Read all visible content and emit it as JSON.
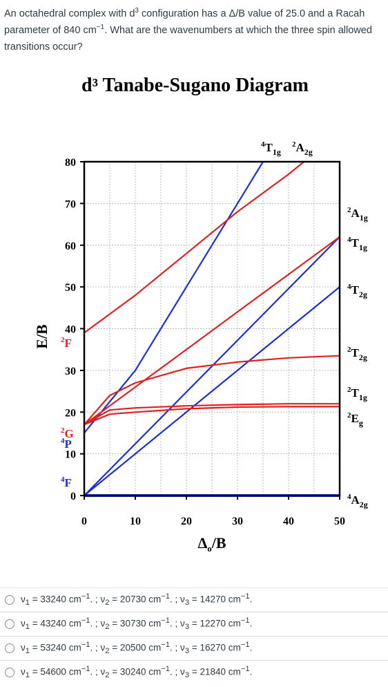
{
  "question": {
    "part1": "An octahedral complex with d",
    "sup1": "3",
    "part2": " configuration has a Δ/B value of 25.0 and a Racah parameter of 840 cm",
    "sup2": "−1",
    "part3": ". What are the wavenumbers at which the three spin allowed transitions occur?"
  },
  "diagram": {
    "title_main": "d³ Tanabe-Sugano Diagram",
    "ylabel": "E/B",
    "xlabel": "Δo/B",
    "top_labels": [
      "⁴T1g",
      "²A2g"
    ],
    "right_labels": [
      "²A1g",
      "⁴T1g",
      "⁴T2g",
      "²T2g",
      "²T1g",
      "²Eg",
      "⁴A2g"
    ],
    "left_labels": [
      "²F",
      "²G",
      "⁴P",
      "⁴F"
    ],
    "colors": {
      "quartet": "#1a2fd6",
      "doublet": "#e02020",
      "grid": "#b8b8b8"
    }
  },
  "chart_data": {
    "type": "line",
    "title": "d³ Tanabe-Sugano Diagram",
    "xlabel": "Δo/B",
    "ylabel": "E/B",
    "xlim": [
      0,
      50
    ],
    "ylim": [
      0,
      80
    ],
    "x_ticks": [
      "0",
      "10",
      "20",
      "30",
      "40",
      "50"
    ],
    "y_ticks": [
      "0",
      "10",
      "20",
      "30",
      "40",
      "50",
      "60",
      "70",
      "80"
    ],
    "grid": true,
    "series": [
      {
        "name": "⁴A2g",
        "color": "#1a2fd6",
        "x": [
          0,
          50
        ],
        "y": [
          0,
          0
        ]
      },
      {
        "name": "⁴T2g",
        "color": "#1a2fd6",
        "x": [
          0,
          50
        ],
        "y": [
          0,
          50
        ]
      },
      {
        "name": "⁴T1g",
        "color": "#1a2fd6",
        "x": [
          0,
          50
        ],
        "y": [
          0,
          62
        ]
      },
      {
        "name": "⁴T1g",
        "color": "#1a2fd6",
        "x": [
          0,
          10,
          20,
          30,
          35
        ],
        "y": [
          15,
          30,
          50,
          70,
          80
        ]
      },
      {
        "name": "²A1g",
        "color": "#e02020",
        "x": [
          0,
          10,
          20,
          30,
          40,
          50
        ],
        "y": [
          17,
          26,
          35,
          44,
          53,
          62
        ]
      },
      {
        "name": "²A2g",
        "color": "#e02020",
        "x": [
          0,
          10,
          20,
          30,
          40,
          43
        ],
        "y": [
          39,
          48,
          58,
          68,
          77,
          80
        ]
      },
      {
        "name": "²T2g",
        "color": "#e02020",
        "x": [
          0,
          5,
          10,
          20,
          30,
          40,
          50
        ],
        "y": [
          17,
          24,
          27,
          30.5,
          32,
          33,
          33.5
        ]
      },
      {
        "name": "²T1g",
        "color": "#e02020",
        "x": [
          0,
          5,
          10,
          20,
          30,
          40,
          50
        ],
        "y": [
          17,
          20.5,
          21,
          21.5,
          21.8,
          22,
          22
        ]
      },
      {
        "name": "²Eg",
        "color": "#e02020",
        "x": [
          0,
          5,
          10,
          20,
          30,
          40,
          50
        ],
        "y": [
          17,
          19.5,
          20,
          20.8,
          21.2,
          21.3,
          21.3
        ]
      }
    ]
  },
  "answers": [
    {
      "t1": "ν",
      "s1": "1",
      "t2": " = 33240 cm",
      "e1": "−1",
      "t3": ". ; ν",
      "s2": "2",
      "t4": " = 20730 cm",
      "e2": "−1",
      "t5": ". ; ν",
      "s3": "3",
      "t6": " = 14270 cm",
      "e3": "−1",
      "t7": "."
    },
    {
      "t1": "ν",
      "s1": "1",
      "t2": " = 43240 cm",
      "e1": "−1",
      "t3": ". ; ν",
      "s2": "2",
      "t4": " = 30730 cm",
      "e2": "−1",
      "t5": ". ; ν",
      "s3": "3",
      "t6": " = 12270 cm",
      "e3": "−1",
      "t7": "."
    },
    {
      "t1": "ν",
      "s1": "1",
      "t2": " = 53240 cm",
      "e1": "−1",
      "t3": ". ; ν",
      "s2": "2",
      "t4": " = 20500 cm",
      "e2": "−1",
      "t5": ". ; ν",
      "s3": "3",
      "t6": " = 16270 cm",
      "e3": "−1",
      "t7": "."
    },
    {
      "t1": "ν",
      "s1": "1",
      "t2": " = 54600 cm",
      "e1": "−1",
      "t3": ". ; ν",
      "s2": "2",
      "t4": " = 30240 cm",
      "e2": "−1",
      "t5": ". ; ν",
      "s3": "3",
      "t6": " = 21840 cm",
      "e3": "−1",
      "t7": "."
    }
  ]
}
